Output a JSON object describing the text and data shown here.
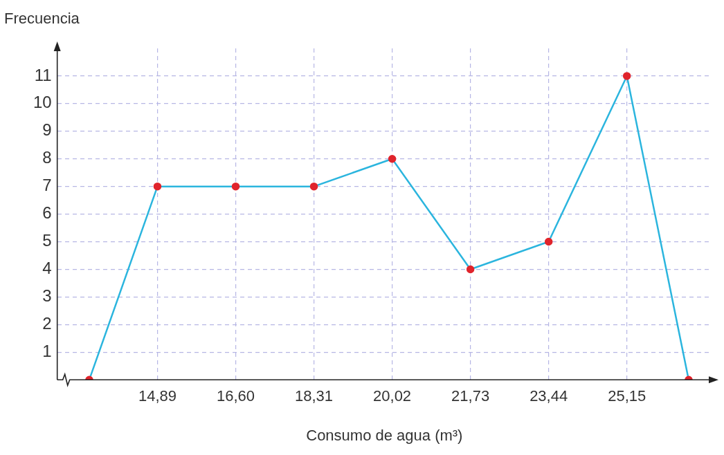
{
  "chart_data": {
    "type": "line",
    "xlabel": "Consumo de agua (m³)",
    "ylabel": "Frecuencia",
    "series": [
      {
        "color": "#2bb5de",
        "colors": [
          "#e0242c",
          "#e0242c",
          "#e0242c",
          "#e0242c",
          "#e0242c",
          "#e0242c",
          "#e0242c",
          "#e0242c",
          "#e0242c"
        ],
        "x": [
          13.4,
          14.89,
          16.6,
          18.31,
          20.02,
          21.73,
          23.44,
          25.15,
          26.5
        ],
        "values": [
          0,
          7,
          7,
          7,
          8,
          4,
          5,
          11,
          0
        ]
      }
    ],
    "xlim": [
      12.7,
      27.0
    ],
    "ylim": [
      0,
      12
    ],
    "xticks": [
      {
        "value": 14.89,
        "label": "14,89"
      },
      {
        "value": 16.6,
        "label": "16,60"
      },
      {
        "value": 18.31,
        "label": "18,31"
      },
      {
        "value": 20.02,
        "label": "20,02"
      },
      {
        "value": 21.73,
        "label": "21,73"
      },
      {
        "value": 23.44,
        "label": "23,44"
      },
      {
        "value": 25.15,
        "label": "25,15"
      }
    ],
    "yticks": [
      1,
      2,
      3,
      4,
      5,
      6,
      7,
      8,
      9,
      10,
      11
    ],
    "grid": true,
    "marker": "circle",
    "line_style": "solid",
    "legend": false
  }
}
